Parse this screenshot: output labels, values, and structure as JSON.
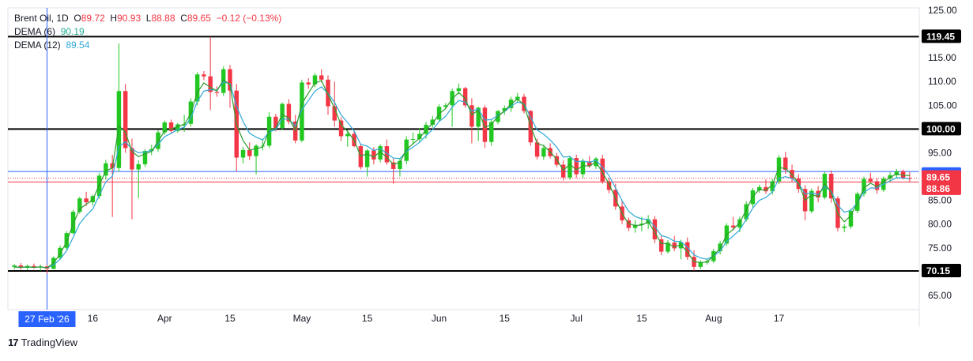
{
  "legend": {
    "symbol": "Brent Oil",
    "interval": "1D",
    "open_label": "O",
    "open": "89.72",
    "high_label": "H",
    "high": "90.93",
    "low_label": "L",
    "low": "88.88",
    "close_label": "C",
    "close": "89.65",
    "change": "−0.12 (−0.13%)",
    "dema6_label": "DEMA (6)",
    "dema6_value": "90.19",
    "dema12_label": "DEMA (12)",
    "dema12_value": "89.54"
  },
  "branding": {
    "name": "TradingView"
  },
  "colors": {
    "up": "#22c722",
    "down": "#f23645",
    "dema6": "#2e9c2e",
    "dema12": "#2fa8d8",
    "crosshair": "#2962ff",
    "level": "#000000",
    "price_line": "#f23645",
    "label_blue": "#2962ff",
    "label_red": "#f23645",
    "label_black": "#000000"
  },
  "chart_data": {
    "type": "candlestick",
    "y_ticks": [
      65,
      70,
      75,
      80,
      85,
      90,
      95,
      100,
      105,
      110,
      115,
      120,
      125
    ],
    "y_tick_labels": [
      "65.00",
      "70.00",
      "75.00",
      "80.00",
      "85.00",
      "90.00",
      "95.00",
      "100.00",
      "105.00",
      "110.00",
      "115.00",
      "120.00",
      "125.00"
    ],
    "ylim": [
      62,
      125.5
    ],
    "x_labels": [
      {
        "label": "16",
        "index": 12
      },
      {
        "label": "Apr",
        "index": 23
      },
      {
        "label": "15",
        "index": 33
      },
      {
        "label": "May",
        "index": 44
      },
      {
        "label": "15",
        "index": 54
      },
      {
        "label": "Jun",
        "index": 65
      },
      {
        "label": "15",
        "index": 75
      },
      {
        "label": "Jul",
        "index": 86
      },
      {
        "label": "15",
        "index": 96
      },
      {
        "label": "Aug",
        "index": 107
      },
      {
        "label": "17",
        "index": 117
      }
    ],
    "crosshair": {
      "label": "27 Feb '26",
      "index": 5
    },
    "horizontal_levels": [
      {
        "value": 119.45,
        "label": "119.45"
      },
      {
        "value": 100.0,
        "label": "100.00"
      },
      {
        "value": 70.15,
        "label": "70.15"
      }
    ],
    "price_labels": [
      {
        "value": 91.06,
        "label": "91.06",
        "role": "crosshair"
      },
      {
        "value": 89.65,
        "label": "89.65",
        "role": "last"
      },
      {
        "value": 88.86,
        "label": "88.86",
        "role": "support"
      }
    ],
    "candles": [
      [
        71.0,
        71.6,
        70.5,
        71.3
      ],
      [
        71.3,
        71.8,
        70.4,
        70.8
      ],
      [
        70.8,
        71.5,
        70.3,
        71.2
      ],
      [
        71.2,
        71.7,
        70.6,
        70.9
      ],
      [
        70.9,
        71.5,
        70.2,
        71.1
      ],
      [
        71.1,
        71.4,
        69.6,
        70.6
      ],
      [
        70.6,
        73.2,
        70.5,
        72.9
      ],
      [
        72.9,
        75.5,
        72.5,
        75.0
      ],
      [
        75.0,
        78.5,
        74.6,
        78.1
      ],
      [
        78.1,
        83.0,
        77.8,
        82.6
      ],
      [
        82.6,
        85.8,
        82.2,
        85.4
      ],
      [
        85.4,
        86.8,
        83.8,
        84.6
      ],
      [
        84.6,
        86.2,
        83.9,
        85.9
      ],
      [
        85.9,
        90.8,
        85.3,
        90.2
      ],
      [
        90.2,
        93.5,
        89.4,
        92.8
      ],
      [
        92.8,
        94.6,
        81.5,
        91.8
      ],
      [
        91.8,
        118.0,
        91.0,
        108.0
      ],
      [
        108.0,
        109.5,
        95.0,
        96.0
      ],
      [
        96.0,
        98.0,
        81.0,
        91.5
      ],
      [
        91.5,
        93.4,
        85.5,
        92.6
      ],
      [
        92.6,
        95.8,
        92.0,
        95.4
      ],
      [
        95.4,
        96.7,
        94.5,
        95.8
      ],
      [
        95.8,
        99.8,
        95.2,
        99.3
      ],
      [
        99.3,
        101.8,
        98.8,
        101.4
      ],
      [
        101.4,
        102.0,
        99.0,
        99.6
      ],
      [
        99.6,
        101.3,
        99.2,
        101.0
      ],
      [
        101.0,
        103.0,
        99.4,
        101.1
      ],
      [
        101.1,
        106.5,
        100.5,
        105.8
      ],
      [
        105.8,
        112.0,
        105.0,
        111.5
      ],
      [
        111.5,
        112.2,
        110.3,
        111.1
      ],
      [
        111.1,
        119.4,
        104.0,
        107.8
      ],
      [
        107.8,
        109.0,
        106.8,
        107.6
      ],
      [
        107.6,
        113.2,
        107.0,
        112.6
      ],
      [
        112.6,
        113.5,
        104.5,
        108.1
      ],
      [
        108.1,
        109.5,
        91.0,
        94.0
      ],
      [
        94.0,
        96.3,
        92.8,
        95.6
      ],
      [
        95.6,
        97.2,
        93.5,
        94.3
      ],
      [
        94.3,
        96.8,
        90.5,
        96.5
      ],
      [
        96.5,
        98.0,
        95.5,
        96.5
      ],
      [
        96.5,
        103.5,
        96.0,
        102.6
      ],
      [
        102.6,
        103.2,
        99.5,
        100.2
      ],
      [
        100.2,
        105.6,
        99.8,
        105.3
      ],
      [
        105.3,
        106.3,
        101.0,
        101.6
      ],
      [
        101.6,
        103.0,
        97.0,
        97.6
      ],
      [
        97.6,
        110.4,
        97.2,
        109.8
      ],
      [
        109.8,
        110.7,
        108.5,
        109.4
      ],
      [
        109.4,
        111.8,
        108.8,
        111.3
      ],
      [
        111.3,
        112.6,
        109.8,
        110.4
      ],
      [
        110.4,
        111.3,
        103.0,
        104.8
      ],
      [
        104.8,
        110.0,
        100.5,
        101.8
      ],
      [
        101.8,
        102.5,
        97.5,
        98.5
      ],
      [
        98.5,
        99.8,
        96.3,
        99.0
      ],
      [
        99.0,
        99.6,
        96.2,
        96.4
      ],
      [
        96.4,
        96.9,
        91.5,
        92.0
      ],
      [
        92.0,
        95.8,
        90.0,
        95.5
      ],
      [
        95.5,
        96.2,
        92.6,
        93.6
      ],
      [
        93.6,
        96.8,
        93.0,
        96.4
      ],
      [
        96.4,
        97.8,
        92.5,
        93.0
      ],
      [
        93.0,
        93.8,
        88.5,
        91.6
      ],
      [
        91.6,
        93.8,
        90.0,
        93.3
      ],
      [
        93.3,
        98.5,
        92.6,
        97.8
      ],
      [
        97.8,
        99.3,
        96.8,
        97.9
      ],
      [
        97.9,
        100.2,
        97.3,
        99.0
      ],
      [
        99.0,
        101.5,
        98.0,
        100.9
      ],
      [
        100.9,
        102.8,
        100.3,
        102.0
      ],
      [
        102.0,
        105.2,
        101.5,
        104.7
      ],
      [
        104.7,
        105.5,
        104.2,
        105.0
      ],
      [
        105.0,
        108.5,
        100.5,
        108.0
      ],
      [
        108.0,
        109.6,
        107.3,
        108.6
      ],
      [
        108.6,
        108.9,
        104.5,
        105.0
      ],
      [
        105.0,
        106.5,
        97.0,
        100.5
      ],
      [
        100.5,
        104.7,
        97.5,
        104.5
      ],
      [
        104.5,
        105.0,
        96.0,
        97.3
      ],
      [
        97.3,
        102.0,
        96.5,
        101.5
      ],
      [
        101.5,
        104.0,
        101.0,
        103.8
      ],
      [
        103.8,
        105.0,
        103.0,
        104.4
      ],
      [
        104.4,
        106.8,
        103.6,
        106.2
      ],
      [
        106.2,
        107.6,
        105.5,
        106.8
      ],
      [
        106.8,
        107.4,
        103.3,
        103.8
      ],
      [
        103.8,
        104.0,
        96.5,
        97.2
      ],
      [
        97.2,
        98.0,
        93.6,
        94.2
      ],
      [
        94.2,
        96.7,
        93.5,
        96.0
      ],
      [
        96.0,
        97.0,
        93.8,
        94.3
      ],
      [
        94.3,
        95.0,
        92.0,
        92.5
      ],
      [
        92.5,
        93.4,
        89.2,
        89.8
      ],
      [
        89.8,
        94.4,
        89.3,
        93.9
      ],
      [
        93.9,
        94.6,
        89.7,
        90.5
      ],
      [
        90.5,
        93.8,
        89.7,
        93.2
      ],
      [
        93.2,
        94.3,
        91.8,
        92.2
      ],
      [
        92.2,
        94.1,
        91.6,
        93.8
      ],
      [
        93.8,
        94.6,
        88.5,
        89.0
      ],
      [
        89.0,
        89.7,
        86.5,
        87.2
      ],
      [
        87.2,
        88.5,
        83.0,
        83.7
      ],
      [
        83.7,
        84.8,
        80.0,
        80.8
      ],
      [
        80.8,
        81.4,
        78.5,
        79.2
      ],
      [
        79.2,
        80.8,
        78.2,
        79.8
      ],
      [
        79.8,
        81.5,
        78.5,
        80.1
      ],
      [
        80.1,
        81.9,
        79.0,
        81.0
      ],
      [
        81.0,
        81.7,
        76.0,
        76.8
      ],
      [
        76.8,
        77.6,
        73.5,
        74.2
      ],
      [
        74.2,
        76.6,
        73.8,
        76.1
      ],
      [
        76.1,
        77.5,
        74.3,
        74.9
      ],
      [
        74.9,
        76.7,
        72.6,
        76.2
      ],
      [
        76.2,
        77.2,
        72.5,
        73.1
      ],
      [
        73.1,
        74.5,
        70.2,
        71.0
      ],
      [
        71.0,
        72.4,
        70.5,
        71.9
      ],
      [
        71.9,
        72.8,
        71.5,
        72.2
      ],
      [
        72.2,
        74.8,
        71.8,
        74.3
      ],
      [
        74.3,
        76.5,
        73.6,
        75.9
      ],
      [
        75.9,
        80.2,
        75.4,
        79.7
      ],
      [
        79.7,
        81.5,
        78.7,
        79.3
      ],
      [
        79.3,
        81.6,
        78.3,
        81.0
      ],
      [
        81.0,
        84.8,
        80.5,
        84.2
      ],
      [
        84.2,
        87.6,
        83.5,
        87.1
      ],
      [
        87.1,
        88.3,
        86.6,
        87.8
      ],
      [
        87.8,
        89.4,
        86.4,
        86.9
      ],
      [
        86.9,
        89.5,
        86.2,
        89.0
      ],
      [
        89.0,
        94.5,
        88.4,
        94.0
      ],
      [
        94.0,
        95.2,
        90.6,
        91.4
      ],
      [
        91.4,
        92.5,
        88.8,
        89.6
      ],
      [
        89.6,
        90.5,
        86.6,
        87.4
      ],
      [
        87.4,
        88.2,
        80.8,
        82.7
      ],
      [
        82.7,
        87.5,
        82.3,
        87.0
      ],
      [
        87.0,
        88.0,
        84.6,
        85.6
      ],
      [
        85.6,
        91.0,
        85.2,
        90.6
      ],
      [
        90.6,
        91.3,
        84.5,
        85.4
      ],
      [
        85.4,
        85.9,
        78.5,
        79.2
      ],
      [
        79.2,
        80.0,
        78.3,
        79.5
      ],
      [
        79.5,
        83.2,
        79.0,
        82.8
      ],
      [
        82.8,
        86.8,
        82.3,
        86.4
      ],
      [
        86.4,
        90.0,
        85.8,
        89.5
      ],
      [
        89.5,
        90.8,
        88.7,
        89.0
      ],
      [
        89.0,
        89.6,
        86.4,
        87.2
      ],
      [
        87.2,
        90.0,
        86.8,
        89.6
      ],
      [
        89.6,
        90.9,
        88.9,
        90.3
      ],
      [
        90.3,
        91.6,
        89.6,
        91.1
      ],
      [
        91.1,
        91.5,
        89.4,
        89.72
      ],
      [
        89.72,
        90.93,
        88.88,
        89.65
      ]
    ],
    "dema6": [
      71.0,
      70.9,
      71.0,
      70.9,
      71.0,
      70.8,
      71.8,
      73.7,
      76.3,
      80.0,
      83.2,
      84.2,
      85.1,
      88.3,
      91.2,
      91.8,
      100.7,
      99.3,
      95.3,
      94.2,
      94.8,
      95.3,
      97.4,
      99.6,
      100.0,
      100.6,
      100.9,
      103.3,
      107.7,
      109.7,
      108.8,
      108.0,
      110.4,
      109.3,
      100.9,
      97.6,
      95.6,
      95.9,
      96.2,
      99.7,
      100.2,
      103.1,
      102.3,
      99.7,
      105.3,
      107.6,
      109.7,
      110.2,
      107.3,
      104.4,
      100.9,
      99.5,
      97.6,
      94.3,
      94.8,
      94.1,
      95.3,
      94.0,
      92.6,
      93.0,
      95.7,
      96.9,
      98.1,
      99.8,
      101.2,
      103.2,
      104.3,
      106.4,
      107.7,
      106.4,
      103.0,
      104.0,
      100.3,
      101.0,
      102.7,
      103.8,
      105.3,
      106.3,
      105.1,
      100.6,
      97.0,
      96.5,
      95.2,
      93.6,
      91.3,
      92.6,
      91.4,
      92.3,
      92.2,
      93.1,
      90.8,
      88.5,
      85.3,
      82.2,
      80.1,
      79.7,
      79.8,
      80.5,
      78.3,
      75.9,
      75.9,
      75.2,
      75.7,
      74.1,
      72.1,
      71.9,
      72.0,
      73.4,
      74.9,
      77.8,
      78.9,
      80.3,
      83.0,
      85.8,
      87.3,
      87.1,
      88.3,
      91.9,
      91.7,
      90.4,
      88.6,
      85.0,
      86.2,
      85.8,
      88.5,
      86.7,
      82.2,
      80.5,
      81.8,
      84.5,
      87.6,
      88.6,
      87.9,
      88.9,
      89.8,
      90.6,
      90.3,
      90.19
    ],
    "dema12": [
      71.0,
      70.9,
      71.0,
      70.9,
      71.0,
      70.8,
      71.4,
      72.6,
      74.4,
      77.2,
      80.1,
      81.8,
      83.2,
      86.1,
      88.9,
      90.1,
      96.3,
      97.3,
      95.8,
      95.0,
      95.2,
      95.5,
      96.8,
      98.4,
      99.1,
      99.9,
      100.4,
      102.3,
      105.8,
      108.0,
      108.3,
      108.2,
      109.9,
      109.6,
      104.8,
      101.6,
      99.1,
      98.3,
      97.7,
      99.4,
      99.9,
      102.1,
      102.1,
      100.6,
      104.1,
      106.0,
      108.0,
      108.9,
      107.5,
      105.6,
      103.0,
      101.4,
      99.6,
      96.8,
      96.4,
      95.5,
      95.9,
      94.9,
      93.9,
      93.8,
      95.3,
      96.2,
      97.2,
      98.6,
      99.9,
      101.6,
      102.7,
      104.6,
      106.0,
      105.7,
      103.8,
      104.2,
      101.9,
      102.0,
      102.9,
      103.7,
      104.8,
      105.7,
      105.3,
      102.5,
      99.8,
      98.9,
      97.7,
      96.2,
      94.1,
      94.2,
      93.1,
      93.3,
      93.0,
      93.4,
      92.0,
      90.2,
      87.6,
      84.9,
      82.7,
      81.6,
      81.1,
      81.0,
      79.5,
      77.6,
      77.2,
      76.4,
      76.3,
      75.1,
      73.5,
      72.9,
      72.6,
      73.3,
      74.3,
      76.4,
      77.5,
      78.8,
      81.0,
      83.4,
      85.0,
      85.6,
      86.8,
      89.6,
      90.0,
      89.6,
      88.6,
      86.3,
      86.6,
      86.2,
      87.9,
      86.9,
      84.0,
      82.5,
      82.9,
      84.5,
      86.7,
      87.6,
      87.6,
      88.4,
      89.1,
      89.8,
      89.7,
      89.54
    ]
  }
}
